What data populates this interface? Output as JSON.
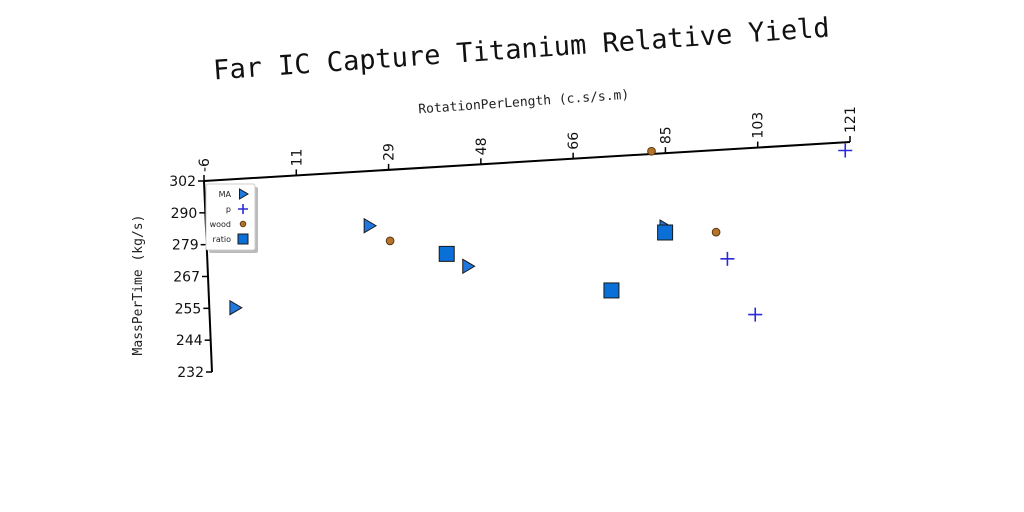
{
  "chart_data": {
    "type": "scatter",
    "title": "Far IC Capture Titanium Relative Yield",
    "xlabel": "RotationPerLength (c.s/s.m)",
    "ylabel": "MassPerTime (kg/s)",
    "x_ticks": [
      "-6",
      "11",
      "29",
      "48",
      "66",
      "85",
      "103",
      "121"
    ],
    "y_ticks": [
      "302",
      "290",
      "279",
      "267",
      "255",
      "244",
      "232"
    ],
    "xlim": [
      -6,
      121
    ],
    "ylim": [
      232,
      302
    ],
    "legend_position": "top-left",
    "series": [
      {
        "name": "MA",
        "marker": "triangle",
        "color": "#1f77e0",
        "points": [
          [
            -1,
            255
          ],
          [
            26,
            282
          ],
          [
            45,
            265
          ],
          [
            84,
            275
          ]
        ]
      },
      {
        "name": "p",
        "marker": "plus",
        "color": "#2a2adb",
        "points": [
          [
            96,
            262
          ],
          [
            101,
            241
          ],
          [
            120,
            299
          ]
        ]
      },
      {
        "name": "wood",
        "marker": "circle",
        "color": "#b5732b",
        "points": [
          [
            30,
            276
          ],
          [
            82,
            303
          ],
          [
            94,
            272
          ]
        ]
      },
      {
        "name": "ratio",
        "marker": "square",
        "color": "#0a6fd6",
        "points": [
          [
            41,
            270
          ],
          [
            73,
            253
          ],
          [
            84,
            273
          ]
        ]
      }
    ]
  }
}
